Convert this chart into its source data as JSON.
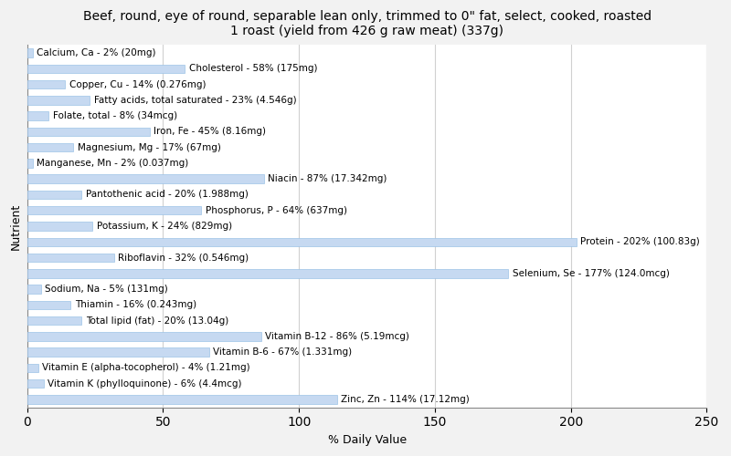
{
  "title": "Beef, round, eye of round, separable lean only, trimmed to 0\" fat, select, cooked, roasted\n1 roast (yield from 426 g raw meat) (337g)",
  "xlabel": "% Daily Value",
  "ylabel": "Nutrient",
  "nutrients": [
    "Calcium, Ca - 2% (20mg)",
    "Cholesterol - 58% (175mg)",
    "Copper, Cu - 14% (0.276mg)",
    "Fatty acids, total saturated - 23% (4.546g)",
    "Folate, total - 8% (34mcg)",
    "Iron, Fe - 45% (8.16mg)",
    "Magnesium, Mg - 17% (67mg)",
    "Manganese, Mn - 2% (0.037mg)",
    "Niacin - 87% (17.342mg)",
    "Pantothenic acid - 20% (1.988mg)",
    "Phosphorus, P - 64% (637mg)",
    "Potassium, K - 24% (829mg)",
    "Protein - 202% (100.83g)",
    "Riboflavin - 32% (0.546mg)",
    "Selenium, Se - 177% (124.0mcg)",
    "Sodium, Na - 5% (131mg)",
    "Thiamin - 16% (0.243mg)",
    "Total lipid (fat) - 20% (13.04g)",
    "Vitamin B-12 - 86% (5.19mcg)",
    "Vitamin B-6 - 67% (1.331mg)",
    "Vitamin E (alpha-tocopherol) - 4% (1.21mg)",
    "Vitamin K (phylloquinone) - 6% (4.4mcg)",
    "Zinc, Zn - 114% (17.12mg)"
  ],
  "values": [
    2,
    58,
    14,
    23,
    8,
    45,
    17,
    2,
    87,
    20,
    64,
    24,
    202,
    32,
    177,
    5,
    16,
    20,
    86,
    67,
    4,
    6,
    114
  ],
  "bar_color": "#c6d9f1",
  "bar_edge_color": "#9dc3e6",
  "bg_color": "#f2f2f2",
  "plot_bg_color": "#ffffff",
  "text_color": "#000000",
  "xlim": [
    0,
    250
  ],
  "xticks": [
    0,
    50,
    100,
    150,
    200,
    250
  ],
  "grid_color": "#d0d0d0",
  "title_fontsize": 10,
  "axis_label_fontsize": 9,
  "bar_label_fontsize": 7.5,
  "bar_height": 0.55
}
